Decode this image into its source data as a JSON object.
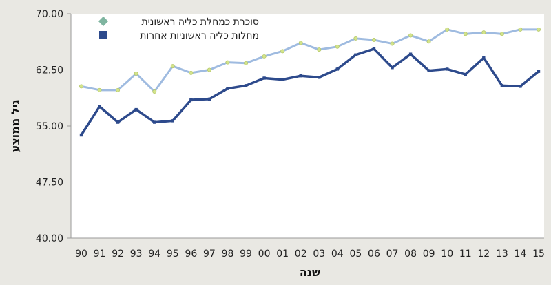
{
  "chart_data": {
    "type": "line",
    "title": "",
    "xlabel": "שנה",
    "ylabel": "גיל ממוצע",
    "ylim": [
      40,
      70
    ],
    "yticks": [
      "40.00",
      "47.50",
      "55.00",
      "62.50",
      "70.00"
    ],
    "categories": [
      "90",
      "91",
      "92",
      "93",
      "94",
      "95",
      "96",
      "97",
      "98",
      "99",
      "00",
      "01",
      "02",
      "03",
      "04",
      "05",
      "06",
      "07",
      "08",
      "09",
      "10",
      "11",
      "12",
      "13",
      "14",
      "15"
    ],
    "legend_position": "top-right",
    "grid": false,
    "series": [
      {
        "name": "סוכרת כמחלת כליה ראשונית",
        "color": "#9fbbe0",
        "marker_color": "#d3e48c",
        "values": [
          60.3,
          59.8,
          59.8,
          62.0,
          59.6,
          63.0,
          62.1,
          62.5,
          63.5,
          63.4,
          64.3,
          65.0,
          66.1,
          65.2,
          65.6,
          66.7,
          66.5,
          66.0,
          67.1,
          66.3,
          67.9,
          67.3,
          67.5,
          67.3,
          67.9,
          67.9
        ]
      },
      {
        "name": "מחלות כליה ראשוניות אחרות",
        "color": "#2d4a8c",
        "marker_color": "#2d4a8c",
        "values": [
          53.8,
          57.6,
          55.5,
          57.2,
          55.5,
          55.7,
          58.5,
          58.6,
          60.0,
          60.4,
          61.4,
          61.2,
          61.7,
          61.5,
          62.6,
          64.5,
          65.3,
          62.8,
          64.6,
          62.4,
          62.6,
          61.9,
          64.1,
          60.4,
          60.3,
          62.3
        ]
      }
    ]
  }
}
